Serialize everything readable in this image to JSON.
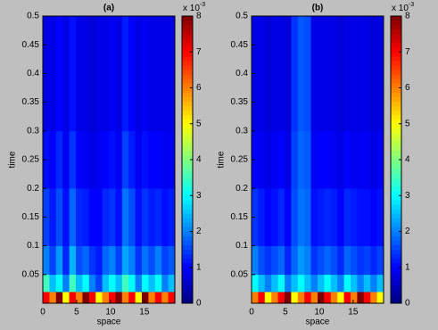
{
  "chart_data": [
    {
      "type": "heatmap",
      "title": "(a)",
      "xlabel": "space",
      "ylabel": "time",
      "xlim": [
        0,
        19.5
      ],
      "xticks": [
        0,
        5,
        10,
        15
      ],
      "ylim": [
        0,
        0.5
      ],
      "yticks": [
        0.05,
        0.1,
        0.15,
        0.2,
        0.25,
        0.3,
        0.35,
        0.4,
        0.45,
        0.5
      ],
      "y_edges": [
        0,
        0.02,
        0.05,
        0.1,
        0.2,
        0.3,
        0.5
      ],
      "z": [
        [
          7,
          6,
          8,
          5,
          7,
          6,
          8,
          7,
          5,
          6,
          7,
          8,
          6,
          7,
          5,
          8,
          6,
          7,
          6,
          7
        ],
        [
          3.5,
          2.5,
          3,
          2,
          3.5,
          2.5,
          3,
          2,
          1.5,
          2.5,
          3,
          2.5,
          3.5,
          3,
          2,
          3,
          2.5,
          3,
          2,
          2.5
        ],
        [
          2,
          1.5,
          2.2,
          1.3,
          2.4,
          1.6,
          1.8,
          1.4,
          1.2,
          1.8,
          2,
          1.5,
          2.3,
          2,
          1.4,
          1.9,
          1.6,
          2,
          1.5,
          1.7
        ],
        [
          1.5,
          1.2,
          1.6,
          1.1,
          1.8,
          1.3,
          1.2,
          1,
          1,
          1.3,
          1.4,
          1.1,
          1.9,
          1.6,
          1.1,
          1.4,
          1.2,
          1.3,
          1.1,
          1.2
        ],
        [
          1.1,
          1,
          1.3,
          0.9,
          1.4,
          1,
          0.9,
          0.8,
          0.9,
          1,
          1.1,
          0.9,
          1.5,
          1.2,
          0.9,
          1.1,
          1,
          1,
          0.9,
          0.9
        ],
        [
          0.8,
          0.8,
          1,
          0.8,
          1.1,
          0.8,
          0.8,
          0.7,
          0.8,
          0.8,
          0.9,
          0.8,
          1.2,
          1,
          0.8,
          0.9,
          0.8,
          0.8,
          0.8,
          0.8
        ]
      ],
      "colormap": "jet",
      "clim": [
        0,
        8
      ],
      "cticks": [
        0,
        1,
        2,
        3,
        4,
        5,
        6,
        7,
        8
      ],
      "colorbar_scale": "x 10",
      "colorbar_exponent": "-3"
    },
    {
      "type": "heatmap",
      "title": "(b)",
      "xlabel": "space",
      "ylabel": "time",
      "xlim": [
        0,
        19.5
      ],
      "xticks": [
        0,
        5,
        10,
        15
      ],
      "ylim": [
        0,
        0.5
      ],
      "yticks": [
        0.05,
        0.1,
        0.15,
        0.2,
        0.25,
        0.3,
        0.35,
        0.4,
        0.45,
        0.5
      ],
      "y_edges": [
        0,
        0.02,
        0.05,
        0.1,
        0.2,
        0.3,
        0.5
      ],
      "z": [
        [
          6,
          7,
          5,
          6,
          7,
          8,
          5,
          6,
          7,
          6,
          8,
          7,
          6,
          5,
          7,
          6,
          8,
          7,
          6,
          5
        ],
        [
          3,
          2.5,
          2,
          2.5,
          3,
          2,
          2.5,
          3,
          2.5,
          2,
          2.5,
          3,
          2.5,
          2,
          3,
          2.5,
          2,
          2.5,
          2,
          2.5
        ],
        [
          2,
          1.6,
          1.4,
          1.6,
          1.8,
          1.3,
          1.8,
          2.2,
          2,
          1.4,
          1.6,
          1.8,
          1.6,
          1.3,
          1.8,
          1.6,
          1.4,
          1.5,
          1.3,
          1.5
        ],
        [
          1.4,
          1.2,
          1,
          1.1,
          1.3,
          1,
          1.6,
          1.9,
          1.8,
          1.1,
          1.2,
          1.3,
          1.2,
          1,
          1.3,
          1.2,
          1.1,
          1.1,
          1,
          1.1
        ],
        [
          1,
          0.9,
          0.8,
          0.9,
          1,
          0.8,
          1.5,
          1.8,
          1.7,
          0.9,
          1,
          1,
          0.9,
          0.8,
          1,
          0.9,
          0.9,
          0.9,
          0.8,
          0.9
        ],
        [
          0.8,
          0.8,
          0.7,
          0.8,
          0.8,
          0.7,
          1.4,
          1.7,
          1.6,
          0.8,
          0.8,
          0.8,
          0.8,
          0.7,
          0.8,
          0.8,
          0.8,
          0.8,
          0.7,
          0.8
        ]
      ],
      "colormap": "jet",
      "clim": [
        0,
        8
      ],
      "cticks": [
        0,
        1,
        2,
        3,
        4,
        5,
        6,
        7,
        8
      ],
      "colorbar_scale": "x 10",
      "colorbar_exponent": "-3"
    }
  ]
}
